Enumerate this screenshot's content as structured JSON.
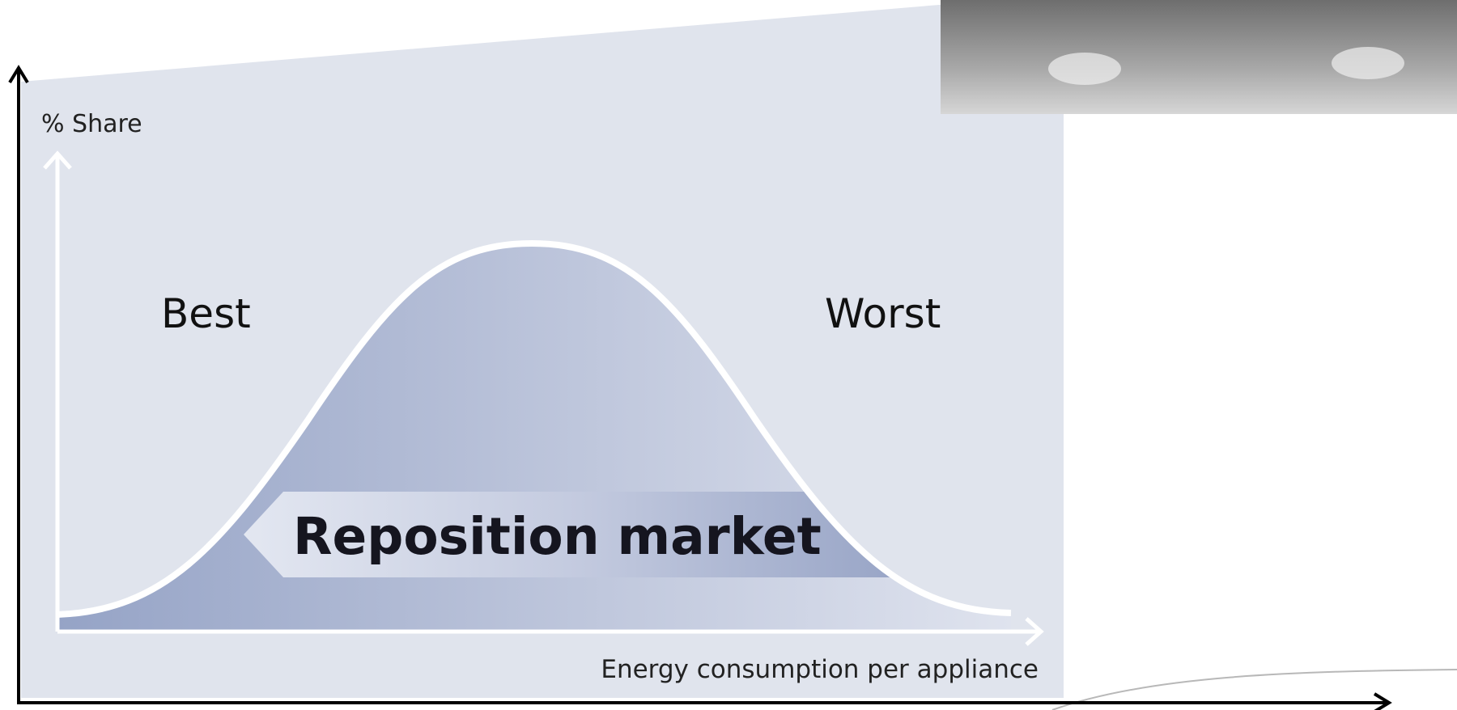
{
  "axes": {
    "y_label": "% Share",
    "x_label": "Energy consumption per appliance"
  },
  "labels": {
    "left": "Best",
    "right": "Worst"
  },
  "banner": "Reposition market"
}
